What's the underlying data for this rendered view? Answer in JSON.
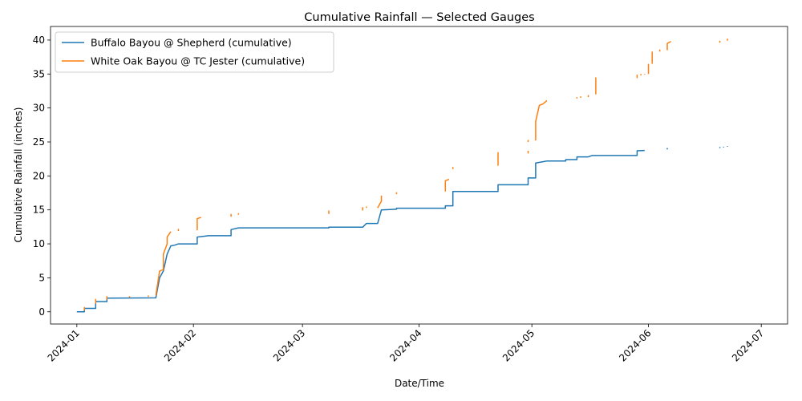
{
  "chart_data": {
    "type": "line",
    "title": "Cumulative Rainfall — Selected Gauges",
    "xlabel": "Date/Time",
    "ylabel": "Cumulative Rainfall (inches)",
    "xlim": [
      "2023-12-25",
      "2024-07-08"
    ],
    "ylim": [
      -1.8,
      42
    ],
    "x_ticks": [
      "2024-01",
      "2024-02",
      "2024-03",
      "2024-04",
      "2024-05",
      "2024-06",
      "2024-07"
    ],
    "y_ticks": [
      0,
      5,
      10,
      15,
      20,
      25,
      30,
      35,
      40
    ],
    "grid": false,
    "legend_position": "top-left",
    "series": [
      {
        "name": "Buffalo Bayou @ Shepherd (cumulative)",
        "color": "#1f77b4",
        "segments": [
          [
            [
              "2024-01-01",
              0.0
            ],
            [
              "2024-01-03",
              0.0
            ],
            [
              "2024-01-03",
              0.5
            ],
            [
              "2024-01-06",
              0.5
            ],
            [
              "2024-01-06",
              1.5
            ],
            [
              "2024-01-09",
              1.5
            ],
            [
              "2024-01-09",
              2.0
            ],
            [
              "2024-01-22",
              2.05
            ],
            [
              "2024-01-23",
              5.0
            ],
            [
              "2024-01-24",
              6.0
            ],
            [
              "2024-01-25",
              8.5
            ],
            [
              "2024-01-26",
              9.7
            ],
            [
              "2024-01-27",
              9.8
            ],
            [
              "2024-01-28",
              10.0
            ],
            [
              "2024-02-02",
              10.0
            ],
            [
              "2024-02-02",
              11.0
            ],
            [
              "2024-02-05",
              11.2
            ],
            [
              "2024-02-11",
              11.2
            ],
            [
              "2024-02-11",
              12.1
            ],
            [
              "2024-02-13",
              12.35
            ],
            [
              "2024-03-08",
              12.35
            ],
            [
              "2024-03-08",
              12.45
            ],
            [
              "2024-03-17",
              12.45
            ],
            [
              "2024-03-18",
              13.0
            ],
            [
              "2024-03-21",
              13.0
            ],
            [
              "2024-03-22",
              15.0
            ],
            [
              "2024-03-26",
              15.1
            ],
            [
              "2024-03-26",
              15.25
            ],
            [
              "2024-04-08",
              15.25
            ],
            [
              "2024-04-08",
              15.6
            ],
            [
              "2024-04-10",
              15.6
            ],
            [
              "2024-04-10",
              17.7
            ],
            [
              "2024-04-22",
              17.7
            ],
            [
              "2024-04-22",
              18.7
            ],
            [
              "2024-04-30",
              18.7
            ],
            [
              "2024-04-30",
              19.7
            ],
            [
              "2024-05-02",
              19.7
            ],
            [
              "2024-05-02",
              21.9
            ],
            [
              "2024-05-04",
              22.1
            ],
            [
              "2024-05-05",
              22.2
            ],
            [
              "2024-05-10",
              22.2
            ],
            [
              "2024-05-10",
              22.4
            ],
            [
              "2024-05-13",
              22.4
            ],
            [
              "2024-05-13",
              22.8
            ],
            [
              "2024-05-16",
              22.8
            ],
            [
              "2024-05-17",
              23.0
            ],
            [
              "2024-05-29",
              23.0
            ],
            [
              "2024-05-29",
              23.7
            ],
            [
              "2024-05-31",
              23.75
            ]
          ],
          [
            [
              "2024-06-06",
              23.9
            ],
            [
              "2024-06-06",
              24.1
            ]
          ],
          [
            [
              "2024-06-20",
              24.1
            ],
            [
              "2024-06-20",
              24.25
            ]
          ],
          [
            [
              "2024-06-21",
              24.2
            ],
            [
              "2024-06-21",
              24.3
            ]
          ],
          [
            [
              "2024-06-22",
              24.3
            ],
            [
              "2024-06-22",
              24.4
            ]
          ]
        ]
      },
      {
        "name": "White Oak Bayou @ TC Jester (cumulative)",
        "color": "#ff7f0e",
        "segments": [
          [
            [
              "2024-01-03",
              0.2
            ],
            [
              "2024-01-03",
              0.7
            ]
          ],
          [
            [
              "2024-01-06",
              1.2
            ],
            [
              "2024-01-06",
              1.9
            ]
          ],
          [
            [
              "2024-01-09",
              1.8
            ],
            [
              "2024-01-09",
              2.3
            ]
          ],
          [
            [
              "2024-01-15",
              2.1
            ],
            [
              "2024-01-15",
              2.3
            ]
          ],
          [
            [
              "2024-01-20",
              2.2
            ],
            [
              "2024-01-20",
              2.4
            ]
          ],
          [
            [
              "2024-01-22",
              2.4
            ],
            [
              "2024-01-23",
              6.0
            ],
            [
              "2024-01-24",
              6.2
            ],
            [
              "2024-01-24",
              8.5
            ],
            [
              "2024-01-25",
              10.0
            ],
            [
              "2024-01-25",
              11.0
            ],
            [
              "2024-01-26",
              11.8
            ]
          ],
          [
            [
              "2024-01-28",
              11.9
            ],
            [
              "2024-01-28",
              12.2
            ]
          ],
          [
            [
              "2024-02-02",
              12.0
            ],
            [
              "2024-02-02",
              13.7
            ],
            [
              "2024-02-03",
              13.9
            ]
          ],
          [
            [
              "2024-02-11",
              14.0
            ],
            [
              "2024-02-11",
              14.4
            ]
          ],
          [
            [
              "2024-02-13",
              14.3
            ],
            [
              "2024-02-13",
              14.5
            ]
          ],
          [
            [
              "2024-03-08",
              14.4
            ],
            [
              "2024-03-08",
              14.9
            ]
          ],
          [
            [
              "2024-03-17",
              14.9
            ],
            [
              "2024-03-17",
              15.4
            ]
          ],
          [
            [
              "2024-03-18",
              15.3
            ],
            [
              "2024-03-18",
              15.5
            ]
          ],
          [
            [
              "2024-03-21",
              15.3
            ],
            [
              "2024-03-22",
              16.3
            ],
            [
              "2024-03-22",
              17.1
            ]
          ],
          [
            [
              "2024-03-26",
              17.3
            ],
            [
              "2024-03-26",
              17.6
            ]
          ],
          [
            [
              "2024-04-08",
              17.7
            ],
            [
              "2024-04-08",
              19.3
            ],
            [
              "2024-04-09",
              19.5
            ]
          ],
          [
            [
              "2024-04-10",
              21.0
            ],
            [
              "2024-04-10",
              21.3
            ]
          ],
          [
            [
              "2024-04-22",
              21.5
            ],
            [
              "2024-04-22",
              23.0
            ],
            [
              "2024-04-22",
              23.5
            ]
          ],
          [
            [
              "2024-04-30",
              23.3
            ],
            [
              "2024-04-30",
              23.7
            ]
          ],
          [
            [
              "2024-04-30",
              25.0
            ],
            [
              "2024-04-30",
              25.3
            ]
          ],
          [
            [
              "2024-05-02",
              25.2
            ],
            [
              "2024-05-02",
              28.0
            ],
            [
              "2024-05-03",
              30.4
            ],
            [
              "2024-05-04",
              30.6
            ]
          ],
          [
            [
              "2024-05-04",
              30.6
            ],
            [
              "2024-05-05",
              31.1
            ]
          ],
          [
            [
              "2024-05-13",
              31.4
            ],
            [
              "2024-05-13",
              31.6
            ]
          ],
          [
            [
              "2024-05-14",
              31.5
            ],
            [
              "2024-05-14",
              31.7
            ]
          ],
          [
            [
              "2024-05-16",
              31.6
            ],
            [
              "2024-05-16",
              31.9
            ]
          ],
          [
            [
              "2024-05-18",
              32.0
            ],
            [
              "2024-05-18",
              34.5
            ]
          ],
          [
            [
              "2024-05-29",
              34.4
            ],
            [
              "2024-05-29",
              34.9
            ]
          ],
          [
            [
              "2024-05-30",
              34.8
            ],
            [
              "2024-05-30",
              35.0
            ]
          ],
          [
            [
              "2024-05-31",
              34.9
            ],
            [
              "2024-05-31",
              35.0
            ]
          ],
          [
            [
              "2024-06-01",
              35.0
            ],
            [
              "2024-06-01",
              36.5
            ]
          ],
          [
            [
              "2024-06-02",
              36.5
            ],
            [
              "2024-06-02",
              38.3
            ]
          ],
          [
            [
              "2024-06-04",
              38.3
            ],
            [
              "2024-06-04",
              38.6
            ]
          ],
          [
            [
              "2024-06-06",
              38.5
            ],
            [
              "2024-06-06",
              39.5
            ],
            [
              "2024-06-07",
              39.8
            ]
          ],
          [
            [
              "2024-06-20",
              39.6
            ],
            [
              "2024-06-20",
              39.9
            ]
          ],
          [
            [
              "2024-06-22",
              39.9
            ],
            [
              "2024-06-22",
              40.2
            ]
          ]
        ]
      }
    ]
  }
}
